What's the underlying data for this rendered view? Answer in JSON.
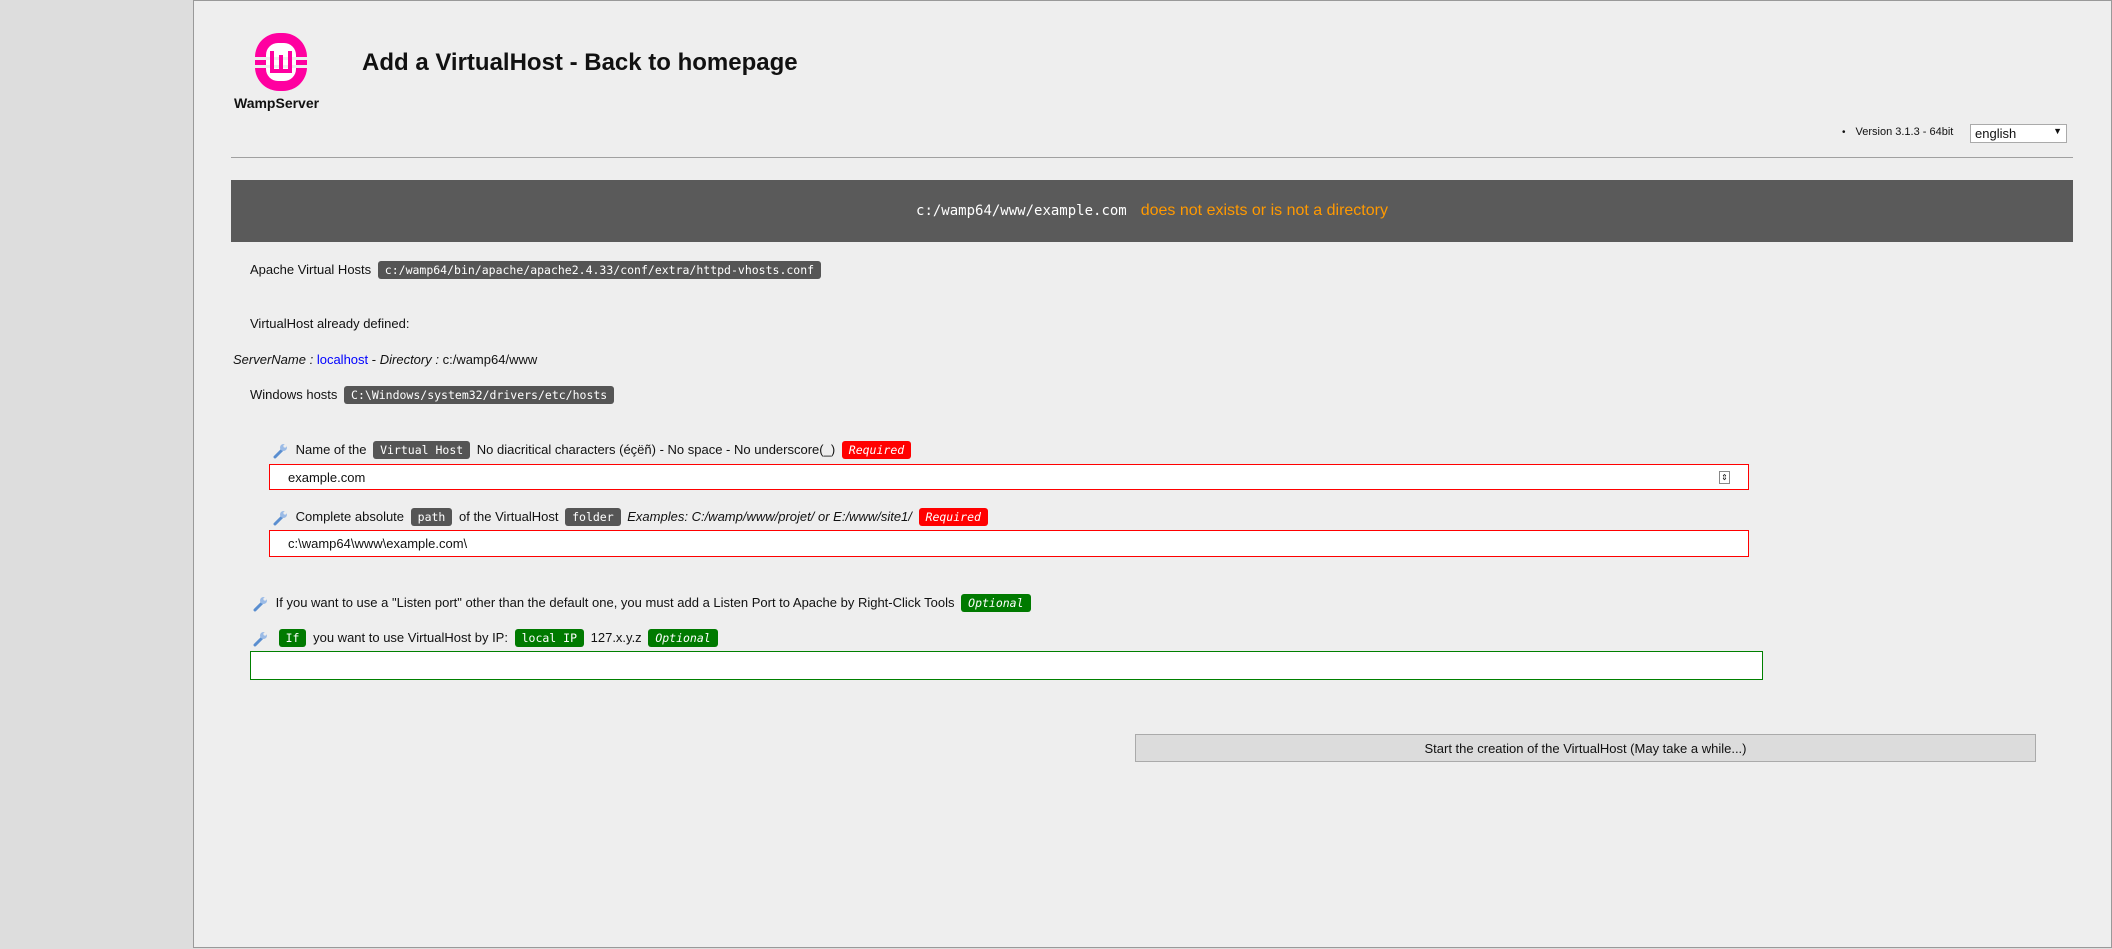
{
  "header": {
    "logo_text": "WampServer",
    "title": "Add a VirtualHost - Back to homepage",
    "version": "Version 3.1.3 - 64bit",
    "language": "english"
  },
  "banner": {
    "path": "c:/wamp64/www/example.com",
    "message": "does not exists or is not a directory"
  },
  "apache": {
    "label": "Apache Virtual Hosts",
    "path": "c:/wamp64/bin/apache/apache2.4.33/conf/extra/httpd-vhosts.conf"
  },
  "defined": {
    "label": "VirtualHost already defined:",
    "servername_label": "ServerName :",
    "servername": "localhost",
    "sep": "-",
    "directory_label": "Directory :",
    "directory": "c:/wamp64/www"
  },
  "hosts": {
    "label": "Windows hosts",
    "path": "C:\\Windows/system32/drivers/etc/hosts"
  },
  "name_field": {
    "pre": "Name of the",
    "badge": "Virtual Host",
    "hint": "No diacritical characters (éçëñ) - No space - No underscore(_)",
    "required": "Required",
    "value": "example.com"
  },
  "path_field": {
    "pre": "Complete absolute",
    "badge1": "path",
    "mid": "of the VirtualHost",
    "badge2": "folder",
    "examples": "Examples: C:/wamp/www/projet/ or E:/www/site1/",
    "required": "Required",
    "value": "c:\\wamp64\\www\\example.com\\"
  },
  "port": {
    "text": "If you want to use a \"Listen port\" other than the default one, you must add a Listen Port to Apache by Right-Click Tools",
    "optional": "Optional"
  },
  "ip": {
    "badge_if": "If",
    "text": "you want to use VirtualHost by IP:",
    "badge_ip": "local IP",
    "pattern": "127.x.y.z",
    "optional": "Optional",
    "value": ""
  },
  "submit": "Start the creation of the VirtualHost (May take a while...)",
  "colors": {
    "brand": "#ff00a0",
    "required": "#ff0000",
    "optional": "#007a00",
    "banner": "#5a5a5a",
    "warning": "#ff9900"
  }
}
